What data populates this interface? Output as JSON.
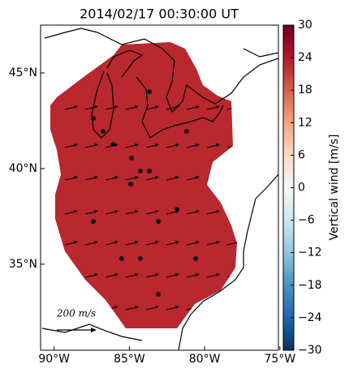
{
  "chart_data": {
    "type": "map",
    "title": "2014/02/17 00:30:00 UT",
    "xlim": [
      -90.9,
      -75.1
    ],
    "xticks": [
      {
        "value": -90,
        "label": "90°W"
      },
      {
        "value": -85,
        "label": "85°W"
      },
      {
        "value": -80,
        "label": "80°W"
      },
      {
        "value": -75,
        "label": "75°W"
      }
    ],
    "ylim": [
      30.5,
      47.5
    ],
    "yticks": [
      {
        "value": 35,
        "label": "35°N"
      },
      {
        "value": 40,
        "label": "40°N"
      },
      {
        "value": 45,
        "label": "45°N"
      }
    ],
    "color": "#b8282e",
    "scale_label": "200 m/s",
    "colorbar": {
      "label": "Vertical wind [m/s]",
      "lim": [
        -30,
        30
      ],
      "ticks": [
        {
          "value": -30,
          "label": "−30"
        },
        {
          "value": -24,
          "label": "−24"
        },
        {
          "value": -18,
          "label": "−18"
        },
        {
          "value": -12,
          "label": "−12"
        },
        {
          "value": -6,
          "label": "−6"
        },
        0,
        6,
        12,
        18,
        24,
        30
      ]
    }
  }
}
